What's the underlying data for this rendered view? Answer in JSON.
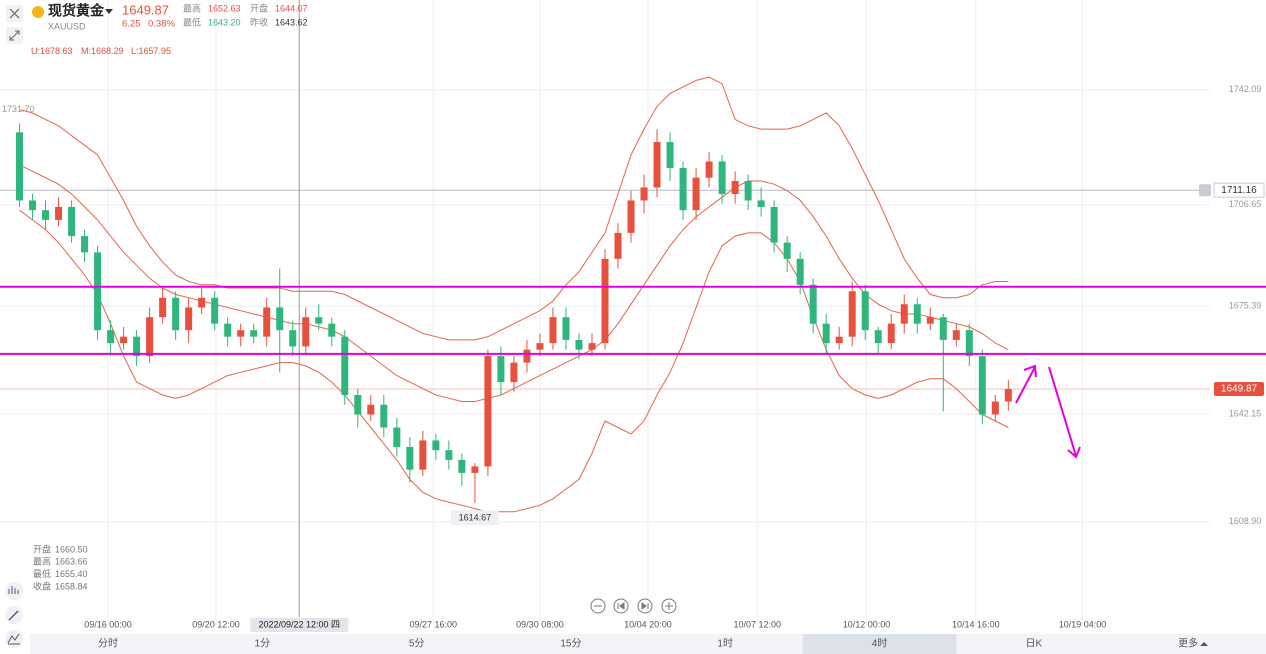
{
  "header": {
    "name": "现货黄金",
    "symbol": "XAUUSD",
    "price": "1649.87",
    "change": "6.25",
    "change_pct": "0.38%",
    "stats": [
      {
        "label": "最高",
        "value": "1652.63"
      },
      {
        "label": "开盘",
        "value": "1644.07"
      },
      {
        "label": "最低",
        "value": "1643.20"
      },
      {
        "label": "昨收",
        "value": "1643.62"
      }
    ]
  },
  "indicator": [
    {
      "label": "U:",
      "value": 1678.63
    },
    {
      "label": "M:",
      "value": 1668.29
    },
    {
      "label": "L:",
      "value": 1657.95
    }
  ],
  "info": [
    {
      "label": "开盘",
      "value": "1660.50"
    },
    {
      "label": "最高",
      "value": "1663.66"
    },
    {
      "label": "最低",
      "value": "1655.40"
    },
    {
      "label": "收盘",
      "value": "1658.84"
    }
  ],
  "tabs": [
    "分时",
    "1分",
    "5分",
    "15分",
    "1时",
    "4时",
    "日K",
    "更多"
  ],
  "selected_tab": "4时",
  "chart_data": {
    "type": "candlestick",
    "xlim": [
      -1.5,
      91.5
    ],
    "ylim": [
      1577.1,
      1769.8
    ],
    "grid": true,
    "up_color": "#e8503e",
    "down_color": "#2fb67c",
    "band_color": "#e0664a",
    "yticks": [
      1742.09,
      1706.65,
      1675.39,
      1642.15,
      {
        "value": 1608.9,
        "label": "1608.90"
      }
    ],
    "xticks": [
      {
        "value": 6.8,
        "label": "09/16 00:00"
      },
      {
        "value": 15.1,
        "label": "09/20 12:00"
      },
      {
        "value": 31.8,
        "label": "09/27 16:00"
      },
      {
        "value": 40,
        "label": "09/30 08:00"
      },
      {
        "value": 48.3,
        "label": "10/04 20:00"
      },
      {
        "value": 56.7,
        "label": "10/07 12:00"
      },
      {
        "value": 65.1,
        "label": "10/12 00:00"
      },
      {
        "value": 73.5,
        "label": "10/14 16:00"
      },
      {
        "value": 81.7,
        "label": "10/19 04:00"
      }
    ],
    "crosshair": {
      "value": 21.5,
      "label": "2022/09/22 12:00 四"
    },
    "candles": {
      "open": [
        1729,
        1708,
        1705,
        1702,
        1706,
        1697,
        1692,
        1668,
        1664,
        1666,
        1660,
        1672,
        1678,
        1668,
        1675,
        1678,
        1670,
        1666,
        1668,
        1666,
        1675,
        1668,
        1663,
        1672,
        1670,
        1666,
        1648,
        1642,
        1645,
        1638,
        1632,
        1625,
        1634,
        1631,
        1628,
        1624,
        1626,
        1660,
        1652,
        1658,
        1662,
        1664,
        1672,
        1665,
        1662,
        1664,
        1690,
        1698,
        1708,
        1712,
        1726,
        1718,
        1705,
        1715,
        1720,
        1710,
        1714,
        1708,
        1706,
        1695,
        1690,
        1682,
        1670,
        1664,
        1666,
        1680,
        1668,
        1664,
        1670,
        1676,
        1670,
        1672,
        1665,
        1668,
        1660,
        1642,
        1646
      ],
      "high": [
        1731.7,
        1710,
        1708,
        1709,
        1708,
        1699,
        1694,
        1671,
        1669,
        1668,
        1675,
        1681,
        1680,
        1678,
        1681,
        1680,
        1672,
        1670,
        1670,
        1678,
        1687,
        1671,
        1675,
        1676,
        1672,
        1668,
        1650,
        1648,
        1648,
        1641,
        1635,
        1637,
        1636,
        1634,
        1630,
        1627,
        1662,
        1663,
        1660,
        1665,
        1667,
        1675,
        1675,
        1667,
        1667,
        1693,
        1701,
        1711,
        1716,
        1730,
        1729,
        1720,
        1718,
        1723,
        1722,
        1717,
        1716,
        1712,
        1708,
        1697,
        1692,
        1684,
        1673,
        1669,
        1683,
        1682,
        1669,
        1673,
        1679,
        1678,
        1675,
        1673,
        1670,
        1670,
        1662,
        1648,
        1652.63
      ],
      "low": [
        1706,
        1702,
        1699,
        1700,
        1695,
        1689,
        1665,
        1660,
        1662,
        1657,
        1658,
        1670,
        1665,
        1664,
        1673,
        1668,
        1663,
        1663,
        1664,
        1663,
        1655,
        1660,
        1661,
        1668,
        1663,
        1645,
        1638,
        1640,
        1635,
        1629,
        1621,
        1623,
        1628,
        1625,
        1620,
        1614.67,
        1623,
        1648,
        1649,
        1655,
        1660,
        1662,
        1662,
        1659,
        1660,
        1662,
        1687,
        1695,
        1704,
        1709,
        1714,
        1702,
        1702,
        1712,
        1707,
        1707,
        1705,
        1703,
        1692,
        1686,
        1679,
        1667,
        1661,
        1662,
        1663,
        1665,
        1661,
        1662,
        1667,
        1667,
        1668,
        1643,
        1663,
        1657,
        1639,
        1640,
        1643.2
      ],
      "close": [
        1708,
        1705,
        1702,
        1706,
        1697,
        1692,
        1668,
        1664,
        1666,
        1660,
        1672,
        1678,
        1668,
        1675,
        1678,
        1670,
        1666,
        1668,
        1666,
        1675,
        1668,
        1663,
        1672,
        1670,
        1666,
        1648,
        1642,
        1645,
        1638,
        1632,
        1625,
        1634,
        1631,
        1628,
        1624,
        1626,
        1660,
        1652,
        1658,
        1662,
        1664,
        1672,
        1665,
        1662,
        1664,
        1690,
        1698,
        1708,
        1712,
        1726,
        1718,
        1705,
        1715,
        1720,
        1710,
        1714,
        1708,
        1706,
        1695,
        1690,
        1682,
        1670,
        1664,
        1666,
        1680,
        1668,
        1664,
        1670,
        1676,
        1670,
        1672,
        1665,
        1668,
        1660,
        1642,
        1646,
        1649.87
      ]
    },
    "bands": {
      "upper": [
        1736,
        1735,
        1733,
        1731,
        1728,
        1725,
        1722,
        1715,
        1708,
        1700,
        1694,
        1689,
        1685,
        1683,
        1682,
        1682,
        1681,
        1681,
        1681,
        1681,
        1681,
        1680,
        1680,
        1680,
        1680,
        1679,
        1677,
        1675,
        1673,
        1671,
        1669,
        1667,
        1666,
        1665,
        1665,
        1665,
        1666,
        1668,
        1670,
        1672,
        1674,
        1677,
        1682,
        1686,
        1692,
        1698,
        1710,
        1722,
        1730,
        1737,
        1741,
        1743,
        1745,
        1746,
        1744,
        1733,
        1731,
        1730,
        1730,
        1730,
        1731,
        1733,
        1735,
        1731,
        1724,
        1716,
        1708,
        1699,
        1690,
        1684,
        1679,
        1678,
        1678,
        1679,
        1682,
        1683,
        1683
      ],
      "middle": [
        1719,
        1717,
        1715,
        1713,
        1710,
        1706,
        1702,
        1697,
        1692,
        1688,
        1684,
        1681,
        1679,
        1678,
        1677,
        1676,
        1675,
        1674,
        1673,
        1672,
        1671,
        1670,
        1670,
        1669,
        1668,
        1666,
        1663,
        1660,
        1657,
        1654,
        1652,
        1650,
        1648,
        1647,
        1646,
        1646,
        1647,
        1648,
        1650,
        1652,
        1654,
        1656,
        1658,
        1660,
        1662,
        1665,
        1670,
        1676,
        1682,
        1688,
        1694,
        1699,
        1703,
        1706,
        1709,
        1712,
        1714,
        1714,
        1713,
        1711,
        1708,
        1703,
        1697,
        1690,
        1684,
        1679,
        1676,
        1674,
        1673,
        1673,
        1672,
        1671,
        1670,
        1669,
        1667,
        1664,
        1662
      ],
      "lower": [
        1705,
        1702,
        1699,
        1695,
        1690,
        1685,
        1679,
        1670,
        1660,
        1652,
        1650,
        1648,
        1647,
        1648,
        1650,
        1652,
        1654,
        1655,
        1656,
        1657,
        1658,
        1658,
        1657,
        1655,
        1652,
        1648,
        1643,
        1638,
        1633,
        1628,
        1622,
        1618,
        1616,
        1615,
        1614,
        1613,
        1612,
        1612,
        1612,
        1613,
        1614,
        1616,
        1619,
        1622,
        1630,
        1640,
        1638,
        1636,
        1640,
        1648,
        1655,
        1664,
        1675,
        1686,
        1694,
        1697,
        1698,
        1698,
        1695,
        1690,
        1683,
        1672,
        1662,
        1654,
        1650,
        1648,
        1647,
        1648,
        1650,
        1652,
        1653,
        1653,
        1650,
        1646,
        1642,
        1640,
        1638
      ]
    },
    "hlines": [
      1681.4,
      1660.7
    ],
    "hline_color": "#e000e0",
    "max_label": {
      "value": 1731.7,
      "label": "1731.70"
    },
    "min_label": {
      "value": 1614.67,
      "label": "1614.67"
    },
    "alert": {
      "value": 1711.16,
      "label": "1711.16"
    },
    "last_price": {
      "value": 1649.87,
      "label": "1649.87"
    }
  }
}
